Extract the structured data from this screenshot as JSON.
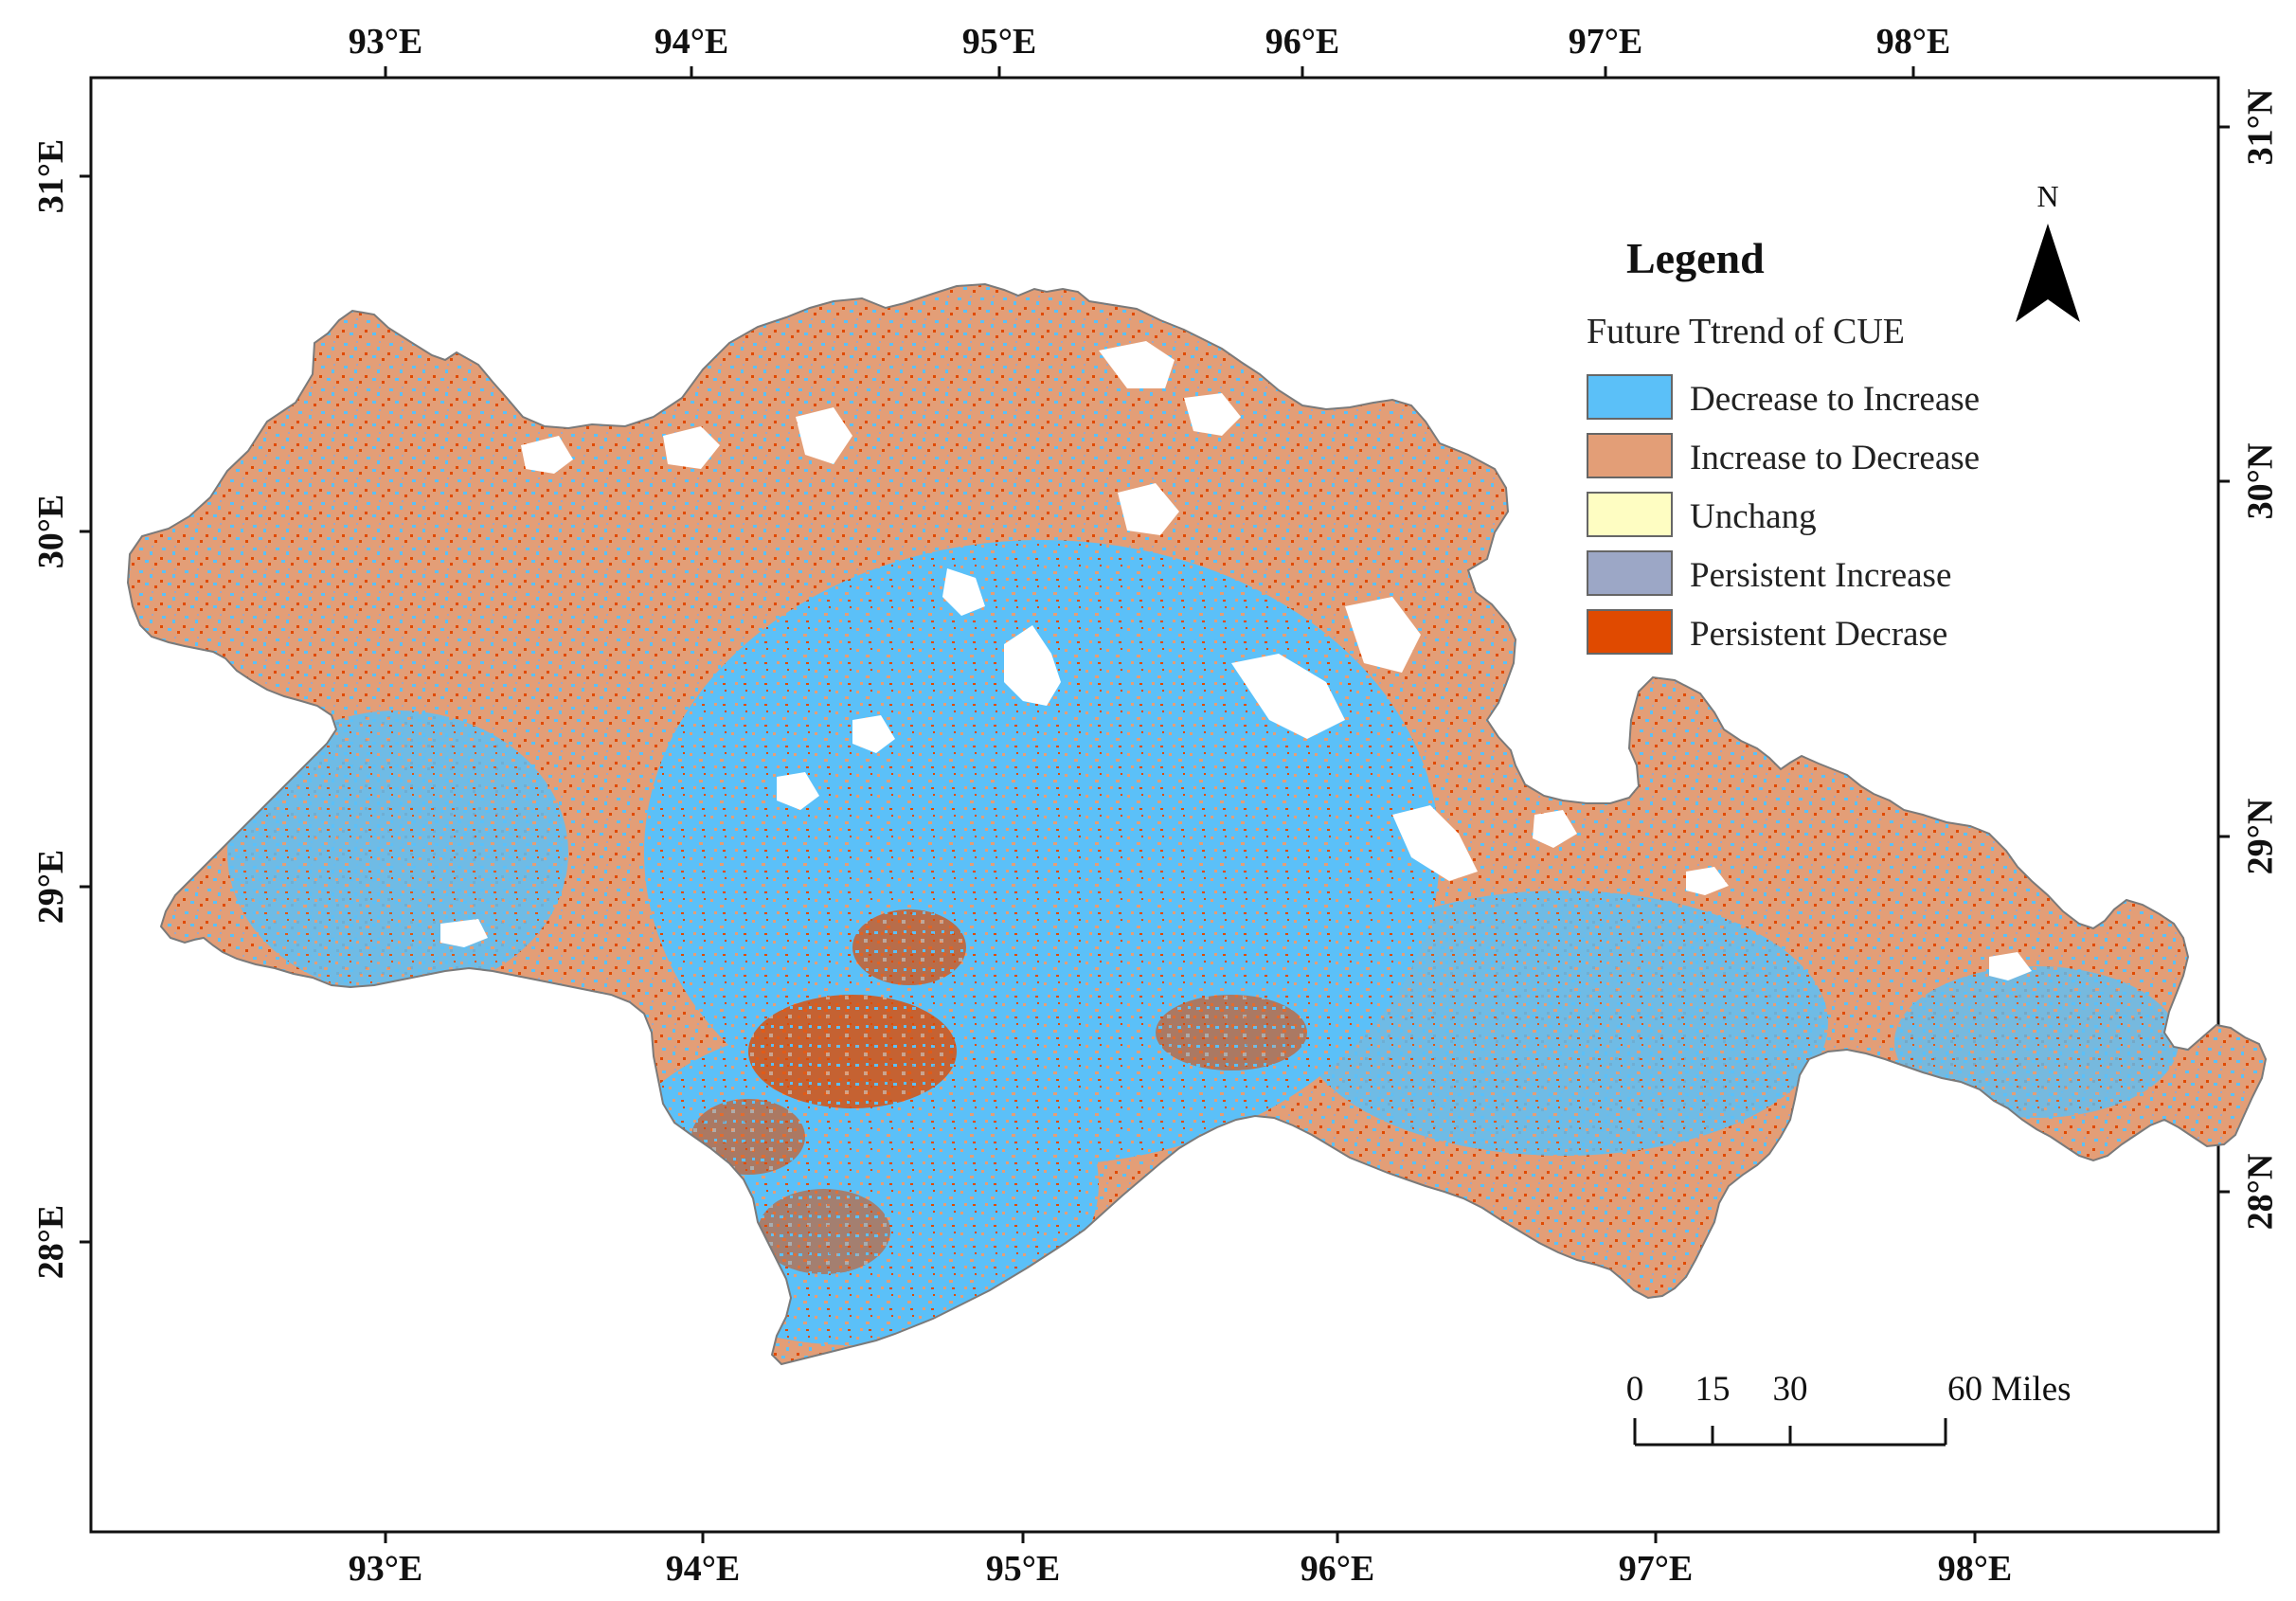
{
  "colors": {
    "decrease_to_increase": "#5bc0f8",
    "increase_to_decrease": "#e39e77",
    "unchang": "#fefdc2",
    "persistent_increase": "#9ca7c6",
    "persistent_decrease": "#e04a00",
    "frame": "#111111",
    "region_outline": "#7a7a7a"
  },
  "axes": {
    "top_ticks": [
      "93°E",
      "94°E",
      "95°E",
      "96°E",
      "97°E",
      "98°E"
    ],
    "bottom_ticks": [
      "93°E",
      "94°E",
      "95°E",
      "96°E",
      "97°E",
      "98°E"
    ],
    "left_ticks": [
      "31°E",
      "30°E",
      "29°E",
      "28°E"
    ],
    "right_ticks": [
      "31°N",
      "30°N",
      "29°N",
      "28°N"
    ]
  },
  "legend": {
    "title": "Legend",
    "subtitle": "Future Ttrend of CUE",
    "items": [
      {
        "label": "Decrease to Increase",
        "color_key": "decrease_to_increase"
      },
      {
        "label": "Increase to Decrease",
        "color_key": "increase_to_decrease"
      },
      {
        "label": "Unchang",
        "color_key": "unchang"
      },
      {
        "label": "Persistent Increase",
        "color_key": "persistent_increase"
      },
      {
        "label": "Persistent Decrase",
        "color_key": "persistent_decrease"
      }
    ]
  },
  "north_arrow": {
    "label": "N",
    "icon": "north-arrow-icon"
  },
  "scale_bar": {
    "labels": [
      "0",
      "15",
      "30",
      "60 Miles"
    ]
  }
}
